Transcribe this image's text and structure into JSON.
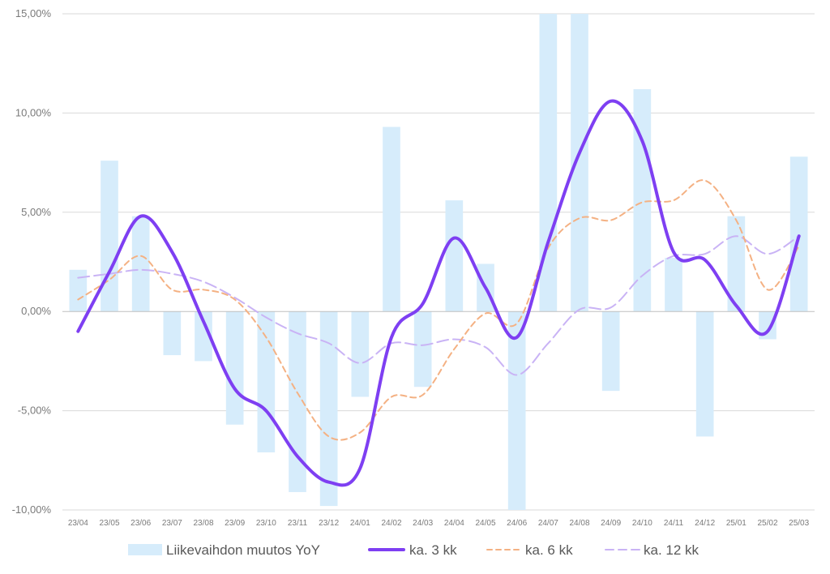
{
  "chart_data": {
    "type": "bar",
    "categories": [
      "23/04",
      "23/05",
      "23/06",
      "23/07",
      "23/08",
      "23/09",
      "23/10",
      "23/11",
      "23/12",
      "24/01",
      "24/02",
      "24/03",
      "24/04",
      "24/05",
      "24/06",
      "24/07",
      "24/08",
      "24/09",
      "24/10",
      "24/11",
      "24/12",
      "25/01",
      "25/02",
      "25/03"
    ],
    "ylim": [
      -10,
      15
    ],
    "yticks": [
      -10,
      -5,
      0,
      5,
      10,
      15
    ],
    "ytick_labels": [
      "-10,00%",
      "-5,00%",
      "0,00%",
      "5,00%",
      "10,00%",
      "15,00%"
    ],
    "grid": true,
    "legend_position": "bottom",
    "series": [
      {
        "name": "Liikevaihdon muutos YoY",
        "kind": "bar",
        "color": "#d6ecfb",
        "values": [
          2.1,
          7.6,
          4.8,
          -2.2,
          -2.5,
          -5.7,
          -7.1,
          -9.1,
          -9.8,
          -4.3,
          9.3,
          -3.8,
          5.6,
          2.4,
          -10.0,
          15.0,
          15.0,
          -4.0,
          11.2,
          2.7,
          -6.3,
          4.8,
          -1.4,
          7.8
        ]
      },
      {
        "name": "ka. 3 kk",
        "kind": "line",
        "style": "solid",
        "color": "#7e3ff2",
        "values": [
          -1.0,
          2.0,
          4.8,
          3.0,
          -0.5,
          -3.9,
          -5.0,
          -7.3,
          -8.6,
          -7.9,
          -1.3,
          0.4,
          3.7,
          1.2,
          -1.3,
          3.5,
          8.0,
          10.6,
          8.6,
          3.0,
          2.6,
          0.3,
          -1.0,
          3.8
        ]
      },
      {
        "name": "ka. 6 kk",
        "kind": "line",
        "style": "dashed",
        "color": "#f4b183",
        "values": [
          0.6,
          1.6,
          2.8,
          1.1,
          1.1,
          0.6,
          -1.3,
          -4.1,
          -6.3,
          -6.1,
          -4.3,
          -4.2,
          -1.9,
          -0.1,
          -0.6,
          3.2,
          4.7,
          4.6,
          5.5,
          5.6,
          6.6,
          4.6,
          1.1,
          3.3
        ]
      },
      {
        "name": "ka. 12 kk",
        "kind": "line",
        "style": "dashed",
        "color": "#c9b3f5",
        "values": [
          1.7,
          1.9,
          2.1,
          1.9,
          1.5,
          0.7,
          -0.3,
          -1.1,
          -1.6,
          -2.6,
          -1.6,
          -1.7,
          -1.4,
          -1.8,
          -3.2,
          -1.6,
          0.1,
          0.2,
          1.8,
          2.8,
          2.9,
          3.8,
          2.9,
          3.8
        ]
      }
    ]
  }
}
